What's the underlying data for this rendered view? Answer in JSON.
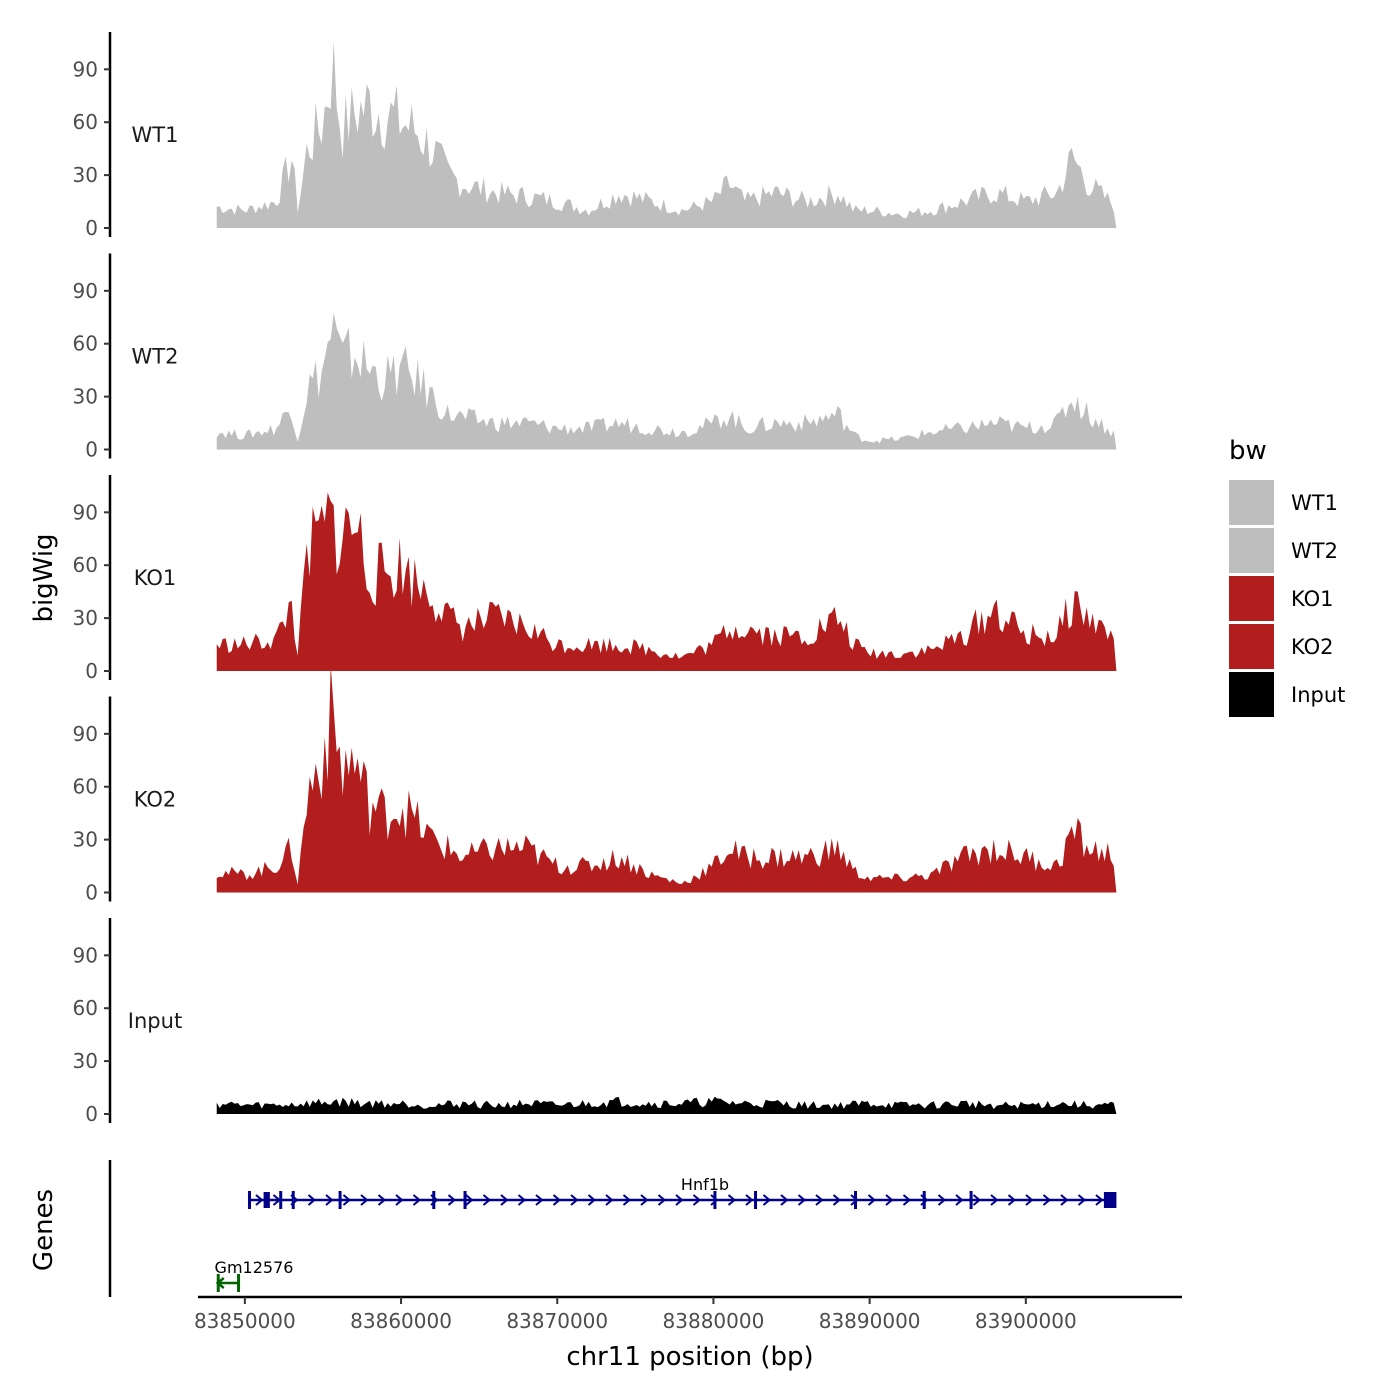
{
  "chart_data": {
    "type": "area",
    "ylabel": "bigWig",
    "genes_label": "Genes",
    "xlabel": "chr11 position (bp)",
    "xlim": [
      83847000,
      83910000
    ],
    "x_ticks": [
      83850000,
      83860000,
      83870000,
      83880000,
      83890000,
      83900000
    ],
    "x_tick_labels": [
      "83850000",
      "83860000",
      "83870000",
      "83880000",
      "83890000",
      "83900000"
    ],
    "ylim": [
      0,
      110
    ],
    "y_ticks": [
      0,
      30,
      60,
      90
    ],
    "y_tick_labels": [
      "0",
      "30",
      "60",
      "90"
    ],
    "signal_range": [
      83848200,
      83905800
    ],
    "colors": {
      "WT1": "#bebebe",
      "WT2": "#bebebe",
      "KO1": "#b21e1e",
      "KO2": "#b21e1e",
      "Input": "#000000"
    },
    "series": [
      {
        "name": "WT1",
        "x": [
          83848200,
          83850000,
          83852000,
          83853000,
          83853400,
          83854000,
          83855000,
          83855600,
          83856200,
          83857000,
          83858000,
          83859000,
          83860000,
          83861000,
          83862000,
          83863000,
          83864000,
          83866000,
          83868000,
          83870000,
          83872000,
          83874000,
          83876000,
          83878000,
          83880000,
          83881000,
          83882000,
          83884000,
          83886000,
          83888000,
          83889000,
          83890000,
          83892000,
          83894000,
          83896000,
          83898000,
          83900000,
          83902000,
          83903000,
          83904000,
          83905800
        ],
        "values": [
          12,
          10,
          15,
          40,
          10,
          45,
          60,
          95,
          55,
          65,
          70,
          65,
          60,
          55,
          45,
          30,
          25,
          20,
          18,
          15,
          10,
          20,
          15,
          10,
          15,
          25,
          15,
          20,
          15,
          20,
          10,
          10,
          8,
          10,
          15,
          20,
          15,
          20,
          40,
          25,
          12
        ]
      },
      {
        "name": "WT2",
        "x": [
          83848200,
          83850000,
          83852000,
          83853000,
          83853400,
          83854000,
          83855000,
          83855600,
          83856200,
          83857000,
          83858000,
          83859000,
          83860000,
          83861000,
          83862000,
          83863000,
          83864000,
          83866000,
          83868000,
          83870000,
          83872000,
          83874000,
          83876000,
          83878000,
          83880000,
          83881000,
          83882000,
          83884000,
          83886000,
          83888000,
          83889000,
          83890000,
          83892000,
          83894000,
          83896000,
          83898000,
          83900000,
          83902000,
          83903000,
          83904000,
          83905800
        ],
        "values": [
          10,
          8,
          12,
          25,
          5,
          35,
          45,
          70,
          50,
          55,
          45,
          40,
          45,
          40,
          30,
          20,
          18,
          15,
          15,
          12,
          12,
          15,
          12,
          10,
          15,
          20,
          12,
          15,
          15,
          20,
          8,
          5,
          6,
          10,
          12,
          15,
          12,
          15,
          30,
          20,
          8
        ]
      },
      {
        "name": "KO1",
        "x": [
          83848200,
          83850000,
          83852000,
          83853000,
          83853400,
          83854000,
          83855000,
          83855600,
          83856200,
          83857000,
          83858000,
          83859000,
          83860000,
          83861000,
          83862000,
          83863000,
          83864000,
          83866000,
          83868000,
          83870000,
          83872000,
          83874000,
          83876000,
          83878000,
          83880000,
          83881000,
          83882000,
          83884000,
          83886000,
          83888000,
          83889000,
          83890000,
          83892000,
          83894000,
          83896000,
          83898000,
          83900000,
          83902000,
          83903000,
          83904000,
          83905800
        ],
        "values": [
          15,
          15,
          18,
          38,
          10,
          65,
          80,
          85,
          75,
          85,
          55,
          55,
          60,
          50,
          45,
          30,
          25,
          30,
          25,
          15,
          15,
          15,
          12,
          8,
          15,
          25,
          25,
          20,
          20,
          30,
          15,
          10,
          10,
          12,
          20,
          35,
          20,
          20,
          40,
          30,
          18
        ]
      },
      {
        "name": "KO2",
        "x": [
          83848200,
          83850000,
          83852000,
          83853000,
          83853400,
          83854000,
          83855000,
          83855600,
          83856200,
          83857000,
          83858000,
          83859000,
          83860000,
          83861000,
          83862000,
          83863000,
          83864000,
          83866000,
          83868000,
          83870000,
          83872000,
          83874000,
          83876000,
          83878000,
          83880000,
          83881000,
          83882000,
          83884000,
          83886000,
          83888000,
          83889000,
          83890000,
          83892000,
          83894000,
          83896000,
          83898000,
          83900000,
          83902000,
          83903000,
          83904000,
          83905800
        ],
        "values": [
          12,
          10,
          15,
          25,
          5,
          55,
          80,
          100,
          70,
          75,
          50,
          45,
          50,
          40,
          30,
          25,
          20,
          25,
          25,
          15,
          15,
          20,
          10,
          5,
          15,
          25,
          20,
          20,
          20,
          25,
          12,
          8,
          8,
          10,
          20,
          25,
          20,
          15,
          35,
          25,
          20
        ]
      },
      {
        "name": "Input",
        "x": [
          83848200,
          83850000,
          83852000,
          83854000,
          83856000,
          83858000,
          83860000,
          83862000,
          83864000,
          83866000,
          83868000,
          83870000,
          83872000,
          83874000,
          83876000,
          83878000,
          83880000,
          83882000,
          83884000,
          83886000,
          83888000,
          83890000,
          83892000,
          83894000,
          83896000,
          83898000,
          83900000,
          83902000,
          83904000,
          83905800
        ],
        "values": [
          6,
          5,
          5,
          6,
          7,
          6,
          6,
          5,
          6,
          5,
          6,
          5,
          6,
          7,
          6,
          6,
          7,
          6,
          6,
          5,
          5,
          6,
          5,
          5,
          6,
          5,
          5,
          6,
          5,
          5
        ]
      }
    ],
    "legend": {
      "title": "bw",
      "position": "right",
      "entries": [
        "WT1",
        "WT2",
        "KO1",
        "KO2",
        "Input"
      ]
    },
    "genes": [
      {
        "name": "Hnf1b",
        "strand": "+",
        "start": 83850200,
        "end": 83905800,
        "color": "#00008b",
        "exons": [
          [
            83850200,
            83850300
          ],
          [
            83851200,
            83851600
          ],
          [
            83852200,
            83852300
          ],
          [
            83853000,
            83853100
          ],
          [
            83856000,
            83856100
          ],
          [
            83862000,
            83862100
          ],
          [
            83864000,
            83864100
          ],
          [
            83880000,
            83880100
          ],
          [
            83882600,
            83882700
          ],
          [
            83889000,
            83889100
          ],
          [
            83893400,
            83893500
          ],
          [
            83896400,
            83896500
          ],
          [
            83905000,
            83905800
          ]
        ]
      },
      {
        "name": "Gm12576",
        "strand": "-",
        "start": 83848200,
        "end": 83849600,
        "color": "#006400",
        "exons": [
          [
            83848200,
            83848300
          ],
          [
            83849500,
            83849600
          ]
        ]
      }
    ]
  }
}
